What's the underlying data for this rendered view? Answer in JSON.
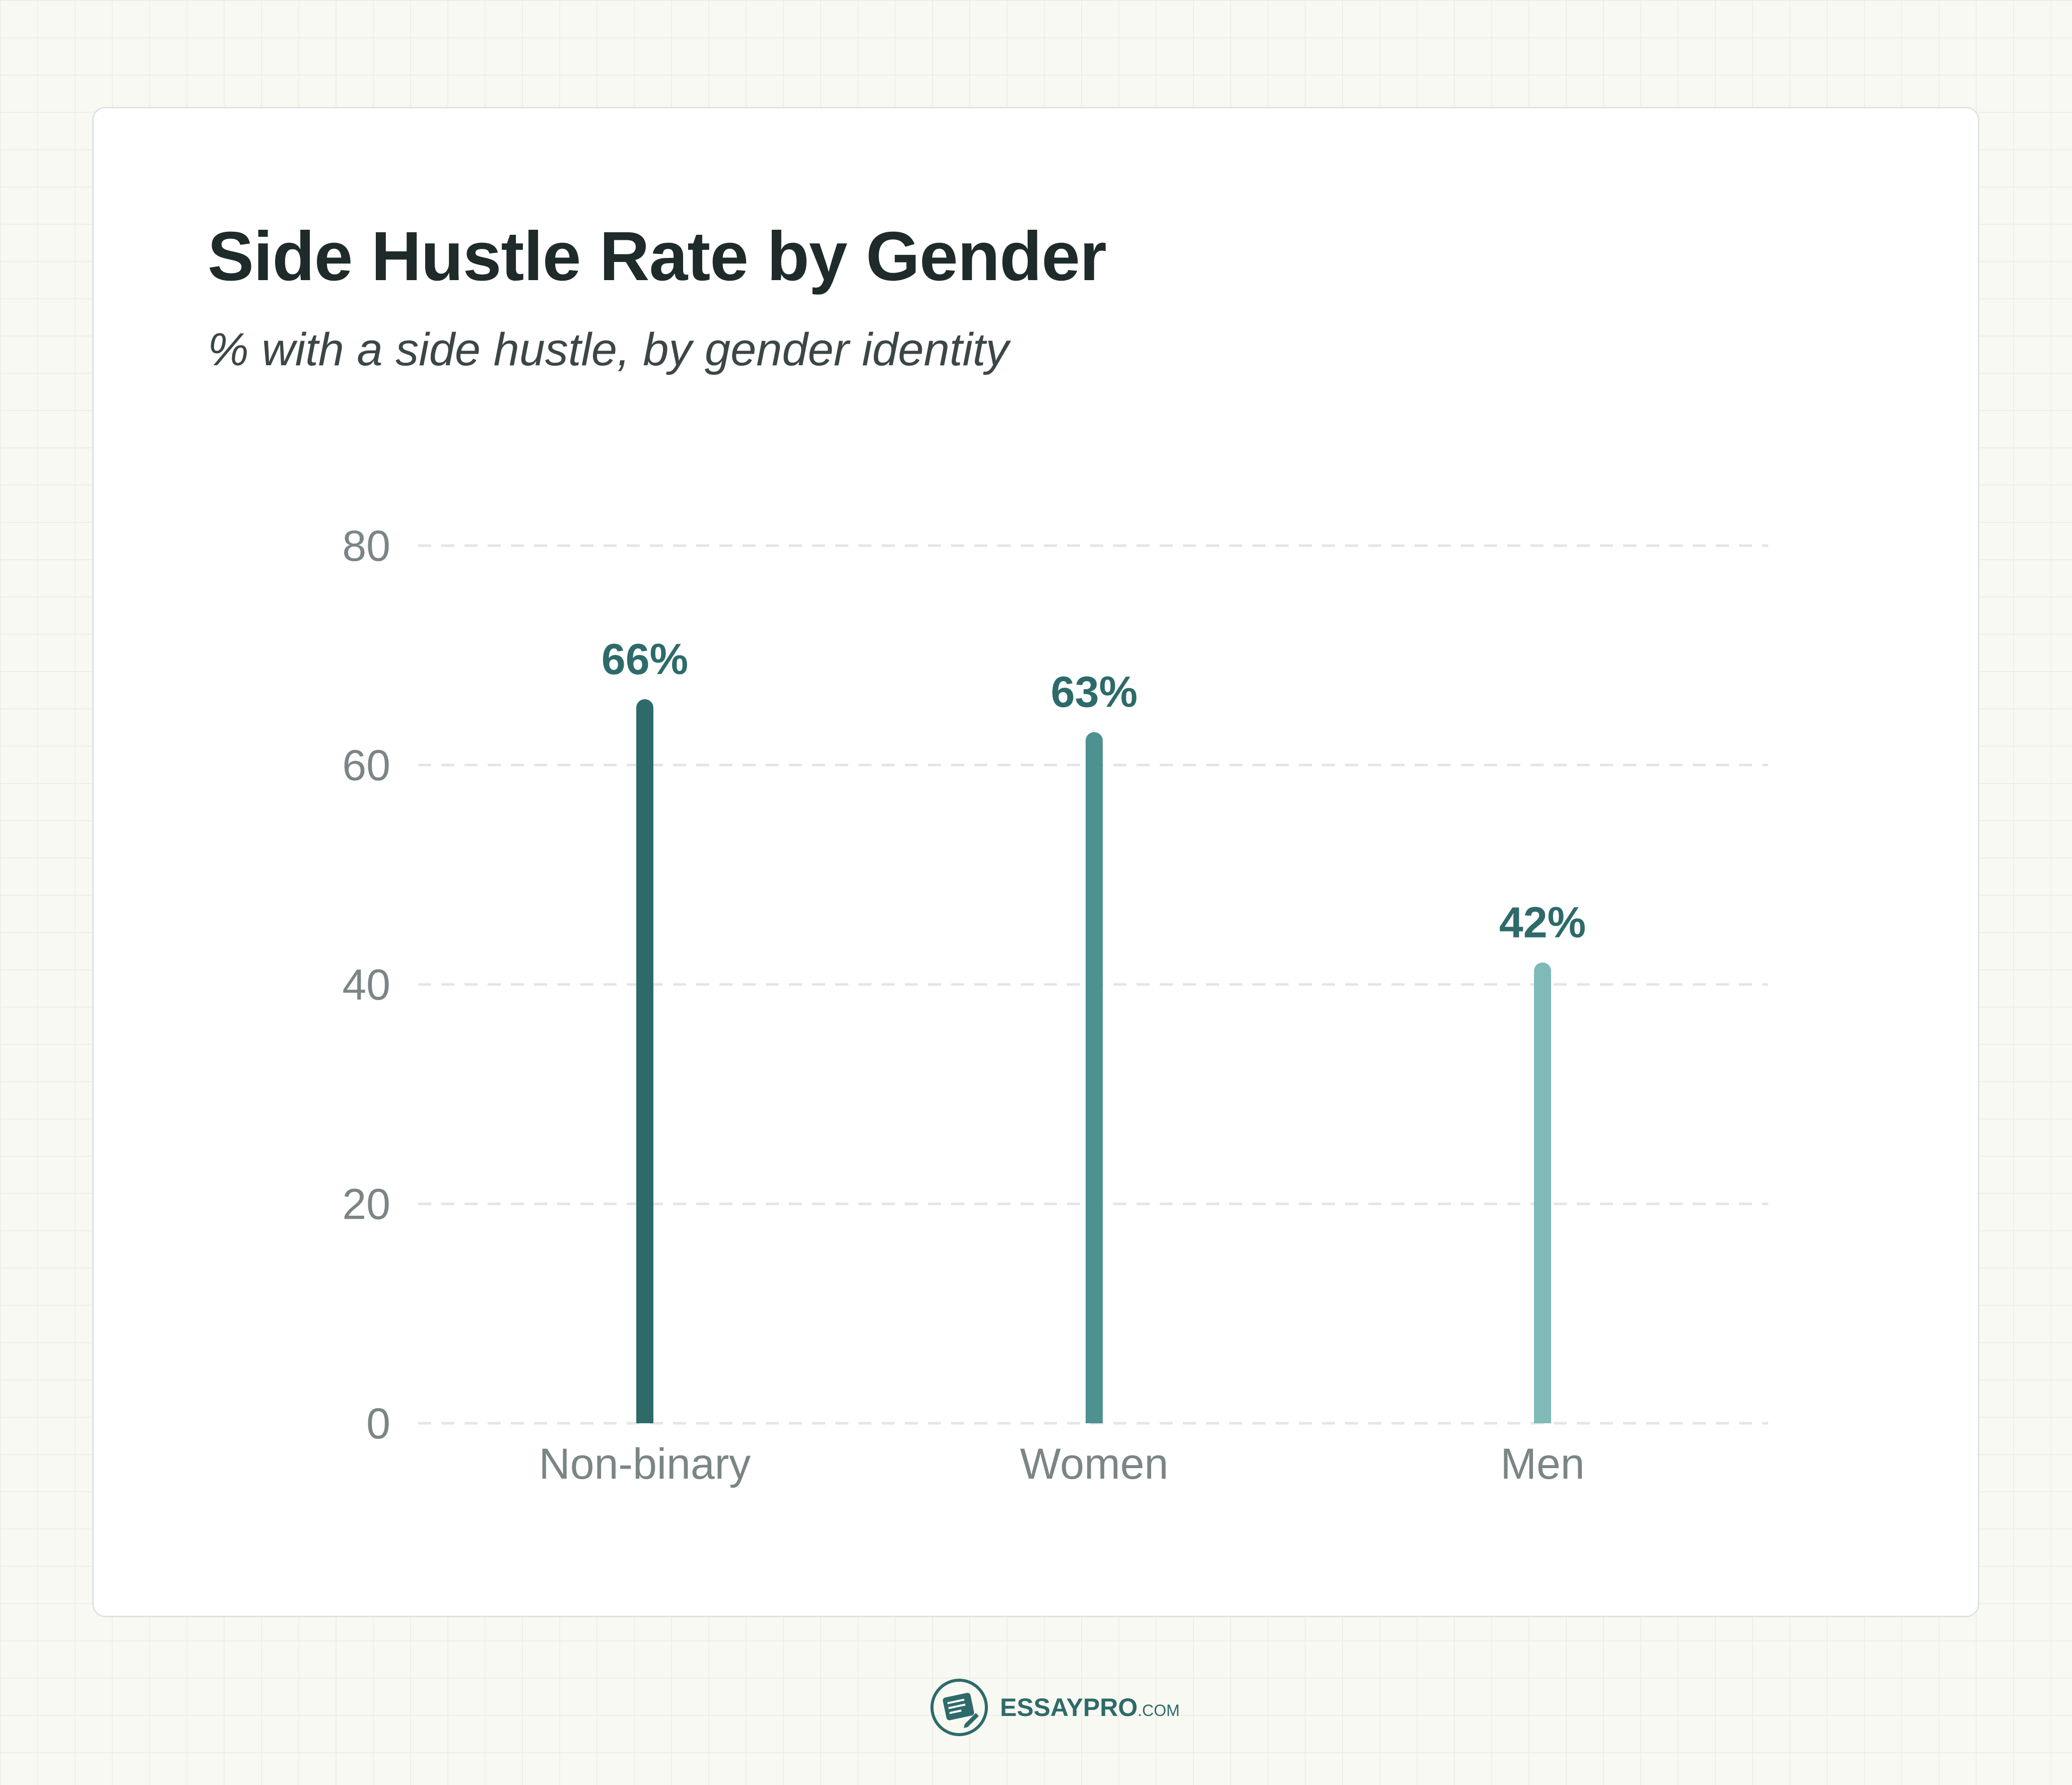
{
  "title": "Side Hustle Rate by Gender",
  "subtitle": "% with a side hustle, by gender identity",
  "logo": {
    "essay": "ESSAY",
    "pro": "PRO",
    "dotcom": ".COM",
    "icon": "essaypro-logo-icon"
  },
  "colors": {
    "background": "#f8f9f2",
    "card": "#ffffff",
    "grid": "#e3e6e4",
    "tick": "#7b8585",
    "label": "#2e6a6a"
  },
  "chart_data": {
    "type": "bar",
    "title": "Side Hustle Rate by Gender",
    "subtitle": "% with a side hustle, by gender identity",
    "categories": [
      "Non-binary",
      "Women",
      "Men"
    ],
    "values": [
      66,
      63,
      42
    ],
    "data_labels": [
      "66%",
      "63%",
      "42%"
    ],
    "bar_colors": [
      "#2e6a6a",
      "#4d9190",
      "#7fbab8"
    ],
    "ylim": [
      0,
      80
    ],
    "yticks": [
      0,
      20,
      40,
      60,
      80
    ],
    "grid": true,
    "legend": "none"
  }
}
